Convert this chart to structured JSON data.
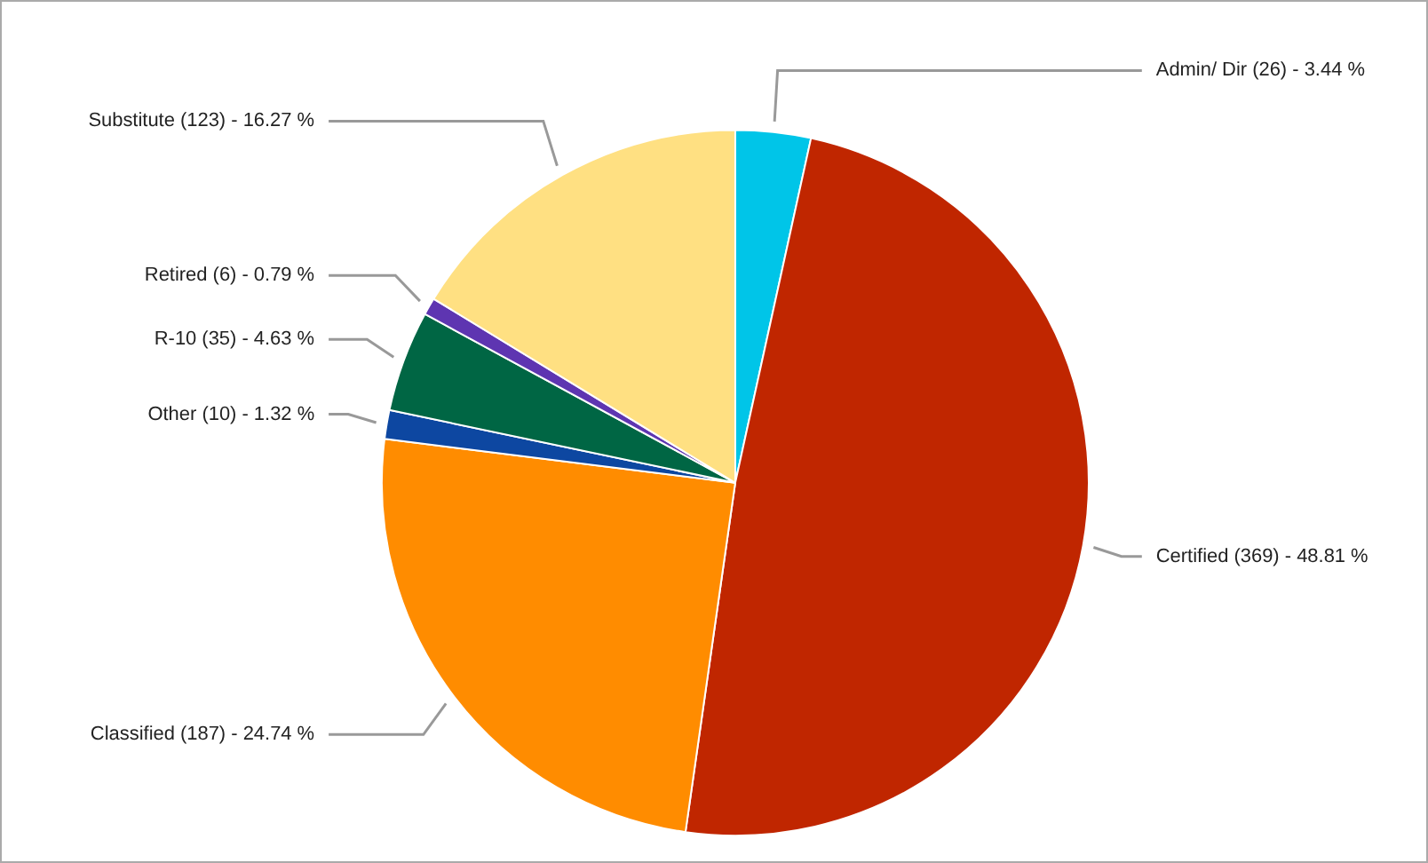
{
  "chart_data": {
    "type": "pie",
    "categories": [
      "Admin/ Dir",
      "Certified",
      "Classified",
      "Other",
      "R-10",
      "Retired",
      "Substitute"
    ],
    "values": [
      26,
      369,
      187,
      10,
      35,
      6,
      123
    ],
    "colors": [
      "#00c5e8",
      "#c02600",
      "#ff8c00",
      "#0d47a1",
      "#006644",
      "#5e35b1",
      "#ffe082"
    ],
    "value_labels": [
      "(26) - 3.44 %",
      "(369) - 48.81 %",
      "(187) - 24.74 %",
      "(10) - 1.32 %",
      "(35) - 4.63 %",
      "(6) - 0.79 %",
      "(123) - 16.27 %"
    ],
    "legend": false
  }
}
